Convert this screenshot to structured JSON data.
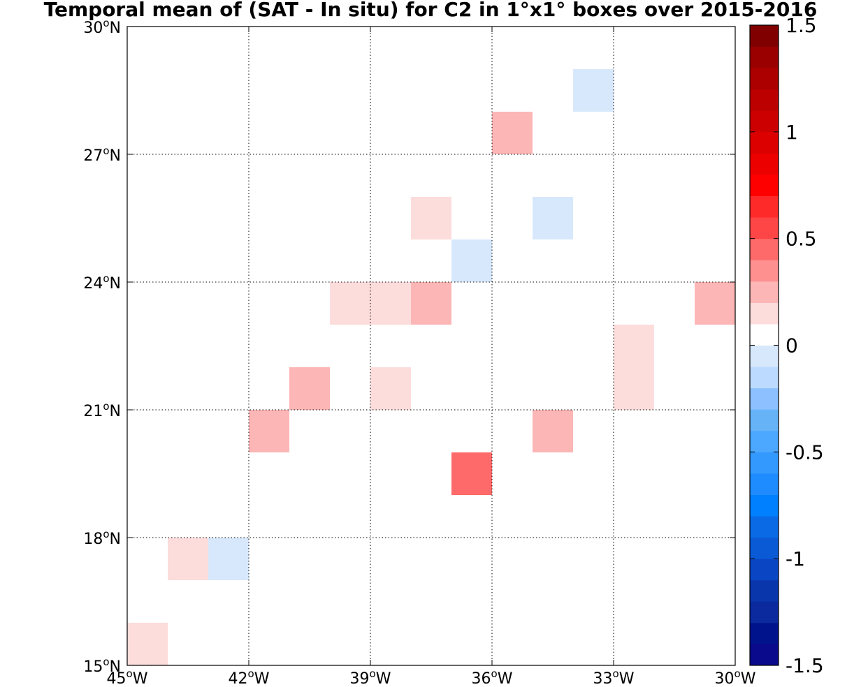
{
  "chart_data": {
    "type": "heatmap",
    "title": "Temporal mean of (SAT - In situ) for C2 in 1°x1° boxes over 2015-2016",
    "xlabel": "",
    "ylabel": "",
    "xlim": [
      -45,
      -30
    ],
    "ylim": [
      15,
      30
    ],
    "grid": true,
    "cell_size_deg": 1,
    "x_ticks": [
      {
        "value": -45,
        "deg": "45",
        "hemi": "W"
      },
      {
        "value": -42,
        "deg": "42",
        "hemi": "W"
      },
      {
        "value": -39,
        "deg": "39",
        "hemi": "W"
      },
      {
        "value": -36,
        "deg": "36",
        "hemi": "W"
      },
      {
        "value": -33,
        "deg": "33",
        "hemi": "W"
      },
      {
        "value": -30,
        "deg": "30",
        "hemi": "W"
      }
    ],
    "y_ticks": [
      {
        "value": 15,
        "deg": "15",
        "hemi": "N"
      },
      {
        "value": 18,
        "deg": "18",
        "hemi": "N"
      },
      {
        "value": 21,
        "deg": "21",
        "hemi": "N"
      },
      {
        "value": 24,
        "deg": "24",
        "hemi": "N"
      },
      {
        "value": 27,
        "deg": "27",
        "hemi": "N"
      },
      {
        "value": 30,
        "deg": "30",
        "hemi": "N"
      }
    ],
    "colorbar": {
      "min": -1.5,
      "max": 1.5,
      "step": 0.1,
      "ticks": [
        {
          "value": 1.5,
          "label": "1.5"
        },
        {
          "value": 1.0,
          "label": "1"
        },
        {
          "value": 0.5,
          "label": "0.5"
        },
        {
          "value": 0.0,
          "label": "0"
        },
        {
          "value": -0.5,
          "label": "-0.5"
        },
        {
          "value": -1.0,
          "label": "-1"
        },
        {
          "value": -1.5,
          "label": "-1.5"
        }
      ],
      "colors": [
        "#0a0a8c",
        "#00128c",
        "#0a2a9e",
        "#0a36ac",
        "#0a46c4",
        "#0a5ad6",
        "#0a6ae6",
        "#0080ff",
        "#1e8cff",
        "#3399ff",
        "#4ca8ff",
        "#66b3f7",
        "#8cc0ff",
        "#bcdaff",
        "#d8e8fc",
        "#ffffff",
        "#fddcdc",
        "#fcb6b6",
        "#fe9090",
        "#fe6a6a",
        "#fe4646",
        "#fe2a2a",
        "#ff0000",
        "#ec0000",
        "#dc0000",
        "#cc0000",
        "#bc0000",
        "#ac0000",
        "#9a0000",
        "#800000"
      ]
    },
    "cells": [
      {
        "lon": -34,
        "lat": 28,
        "value": -0.05
      },
      {
        "lon": -36,
        "lat": 27,
        "value": 0.25
      },
      {
        "lon": -38,
        "lat": 25,
        "value": 0.15
      },
      {
        "lon": -35,
        "lat": 25,
        "value": -0.05
      },
      {
        "lon": -37,
        "lat": 24,
        "value": -0.05
      },
      {
        "lon": -40,
        "lat": 23,
        "value": 0.15
      },
      {
        "lon": -39,
        "lat": 23,
        "value": 0.15
      },
      {
        "lon": -38,
        "lat": 23,
        "value": 0.25
      },
      {
        "lon": -31,
        "lat": 23,
        "value": 0.25
      },
      {
        "lon": -33,
        "lat": 22,
        "value": 0.15
      },
      {
        "lon": -41,
        "lat": 21,
        "value": 0.25
      },
      {
        "lon": -39,
        "lat": 21,
        "value": 0.15
      },
      {
        "lon": -33,
        "lat": 21,
        "value": 0.15
      },
      {
        "lon": -42,
        "lat": 20,
        "value": 0.25
      },
      {
        "lon": -35,
        "lat": 20,
        "value": 0.25
      },
      {
        "lon": -37,
        "lat": 19,
        "value": 0.45
      },
      {
        "lon": -44,
        "lat": 17,
        "value": 0.15
      },
      {
        "lon": -43,
        "lat": 17,
        "value": -0.05
      },
      {
        "lon": -45,
        "lat": 15,
        "value": 0.15
      }
    ]
  }
}
